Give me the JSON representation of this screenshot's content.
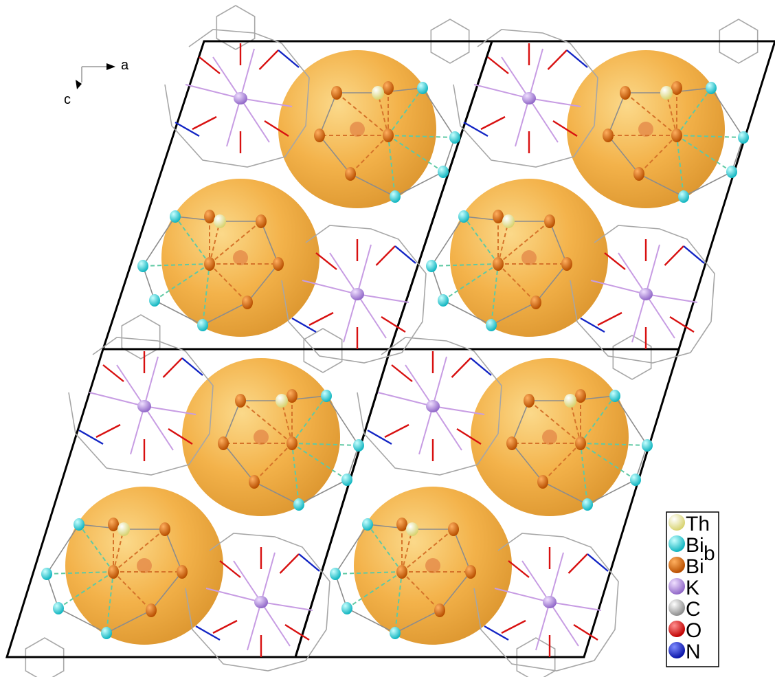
{
  "axes": {
    "a_label": "a",
    "c_label": "c"
  },
  "legend": {
    "items": [
      {
        "label": "Th",
        "color": "#f0ee9a"
      },
      {
        "label": "Bi",
        "color": "#2fd6dc"
      },
      {
        "label": "Bi",
        "color": "#de6d0c"
      },
      {
        "label": "K",
        "color": "#b38ae0"
      },
      {
        "label": "C",
        "color": "#b9b9b9"
      },
      {
        "label": "O",
        "color": "#e01010"
      },
      {
        "label": "N",
        "color": "#1a2bd0"
      }
    ],
    "subscripts": [
      {
        "text": "b"
      }
    ]
  },
  "colors": {
    "cage_sphere": "#f3b24a",
    "cell_edge": "#000000",
    "bond_grey": "#9a9a9a"
  }
}
